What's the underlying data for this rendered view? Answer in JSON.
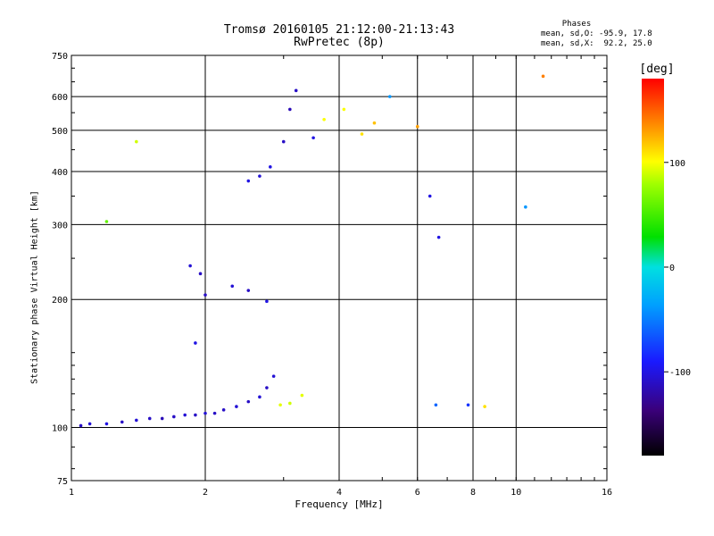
{
  "header": {
    "title_line1": "Tromsø 20160105 21:12:00-21:13:43",
    "title_line2": "RwPretec (8p)",
    "info_heading": "Phases",
    "info_o": "mean, sd,O: -95.9, 17.8",
    "info_x": "mean, sd,X:  92.2, 25.0"
  },
  "colorbar": {
    "unit": "[deg]",
    "range": [
      -180,
      180
    ],
    "ticks": [
      100,
      0,
      -100
    ],
    "tick_labels": [
      "100",
      "0",
      "-100"
    ]
  },
  "chart_data": {
    "type": "scatter",
    "title": "Tromsø 20160105 21:12:00-21:13:43",
    "subtitle": "RwPretec (8p)",
    "xlabel": "Frequency [MHz]",
    "ylabel": "Stationary phase Virtual Height [km]",
    "xscale": "log",
    "yscale": "log",
    "xlim": [
      1,
      16
    ],
    "ylim": [
      75,
      750
    ],
    "xticks": [
      1,
      2,
      4,
      6,
      8,
      10,
      16
    ],
    "xtick_labels": [
      "1",
      "2",
      "4",
      "6",
      "8",
      "10",
      "16"
    ],
    "yticks": [
      75,
      100,
      200,
      300,
      400,
      500,
      600,
      750
    ],
    "ytick_labels": [
      "75",
      "100",
      "200",
      "300",
      "400",
      "500",
      "600",
      "750"
    ],
    "grid": true,
    "color_scale": "phase [deg]",
    "clusters": [
      {
        "x": 1.05,
        "y": 101,
        "phase": -110
      },
      {
        "x": 1.1,
        "y": 102,
        "phase": -105
      },
      {
        "x": 1.2,
        "y": 102,
        "phase": -100
      },
      {
        "x": 1.3,
        "y": 103,
        "phase": -110
      },
      {
        "x": 1.4,
        "y": 104,
        "phase": -105
      },
      {
        "x": 1.5,
        "y": 105,
        "phase": -110
      },
      {
        "x": 1.6,
        "y": 105,
        "phase": -115
      },
      {
        "x": 1.7,
        "y": 106,
        "phase": -110
      },
      {
        "x": 1.8,
        "y": 107,
        "phase": -105
      },
      {
        "x": 1.9,
        "y": 107,
        "phase": -110
      },
      {
        "x": 2.0,
        "y": 108,
        "phase": -105
      },
      {
        "x": 2.1,
        "y": 108,
        "phase": -110
      },
      {
        "x": 2.2,
        "y": 110,
        "phase": -110
      },
      {
        "x": 2.35,
        "y": 112,
        "phase": -105
      },
      {
        "x": 2.5,
        "y": 115,
        "phase": -110
      },
      {
        "x": 2.65,
        "y": 118,
        "phase": -105
      },
      {
        "x": 2.75,
        "y": 124,
        "phase": -110
      },
      {
        "x": 2.85,
        "y": 132,
        "phase": -105
      },
      {
        "x": 2.95,
        "y": 113,
        "phase": 95
      },
      {
        "x": 3.1,
        "y": 114,
        "phase": 90
      },
      {
        "x": 3.3,
        "y": 119,
        "phase": 95
      },
      {
        "x": 1.85,
        "y": 240,
        "phase": -105
      },
      {
        "x": 1.95,
        "y": 230,
        "phase": -110
      },
      {
        "x": 2.0,
        "y": 205,
        "phase": -110
      },
      {
        "x": 1.9,
        "y": 158,
        "phase": -100
      },
      {
        "x": 2.3,
        "y": 215,
        "phase": -105
      },
      {
        "x": 2.5,
        "y": 210,
        "phase": -110
      },
      {
        "x": 2.75,
        "y": 198,
        "phase": -100
      },
      {
        "x": 2.5,
        "y": 380,
        "phase": -100
      },
      {
        "x": 2.65,
        "y": 390,
        "phase": -105
      },
      {
        "x": 2.8,
        "y": 410,
        "phase": -100
      },
      {
        "x": 3.0,
        "y": 470,
        "phase": -110
      },
      {
        "x": 3.1,
        "y": 560,
        "phase": -115
      },
      {
        "x": 3.2,
        "y": 620,
        "phase": -110
      },
      {
        "x": 3.5,
        "y": 480,
        "phase": -100
      },
      {
        "x": 3.7,
        "y": 530,
        "phase": 100
      },
      {
        "x": 4.1,
        "y": 560,
        "phase": 100
      },
      {
        "x": 4.5,
        "y": 490,
        "phase": 110
      },
      {
        "x": 4.8,
        "y": 520,
        "phase": 120
      },
      {
        "x": 5.2,
        "y": 600,
        "phase": -40
      },
      {
        "x": 6.6,
        "y": 113,
        "phase": -60
      },
      {
        "x": 7.8,
        "y": 113,
        "phase": -80
      },
      {
        "x": 8.5,
        "y": 112,
        "phase": 110
      },
      {
        "x": 6.0,
        "y": 510,
        "phase": 130
      },
      {
        "x": 6.4,
        "y": 350,
        "phase": -100
      },
      {
        "x": 6.7,
        "y": 280,
        "phase": -100
      },
      {
        "x": 1.4,
        "y": 470,
        "phase": 90
      },
      {
        "x": 1.2,
        "y": 305,
        "phase": 60
      },
      {
        "x": 11.5,
        "y": 670,
        "phase": 140
      },
      {
        "x": 10.5,
        "y": 330,
        "phase": -40
      }
    ]
  }
}
